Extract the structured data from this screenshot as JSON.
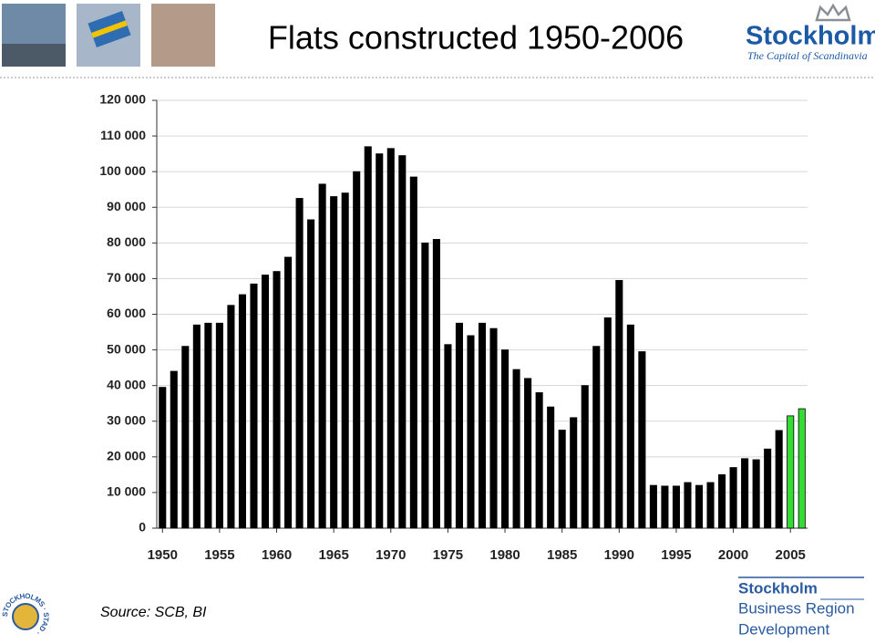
{
  "chart_data": {
    "type": "bar",
    "title": "Flats constructed 1950-2006",
    "categories": [
      "1950",
      null,
      null,
      null,
      null,
      "1955",
      null,
      null,
      null,
      null,
      "1960",
      null,
      null,
      null,
      null,
      "1965",
      null,
      null,
      null,
      null,
      "1970",
      null,
      null,
      null,
      null,
      "1975",
      null,
      null,
      null,
      null,
      "1980",
      null,
      null,
      null,
      null,
      "1985",
      null,
      null,
      null,
      null,
      "1990",
      null,
      null,
      null,
      null,
      "1995",
      null,
      null,
      null,
      null,
      "2000",
      null,
      null,
      null,
      null,
      "2005",
      null
    ],
    "values": [
      39500,
      44000,
      51000,
      57000,
      57500,
      57500,
      62500,
      65500,
      68500,
      71000,
      72000,
      76000,
      92500,
      86500,
      96500,
      93000,
      94000,
      100000,
      107000,
      105000,
      106500,
      104500,
      98500,
      80000,
      81000,
      51500,
      57500,
      54000,
      57500,
      56000,
      50000,
      44500,
      42000,
      38000,
      34000,
      27500,
      31000,
      40000,
      51000,
      59000,
      69500,
      57000,
      49500,
      12000,
      11800,
      11800,
      12800,
      12000,
      12800,
      15000,
      17000,
      19500,
      19200,
      22200,
      27400,
      31500,
      33500
    ],
    "colors": [
      "#000000",
      "#000000",
      "#000000",
      "#000000",
      "#000000",
      "#000000",
      "#000000",
      "#000000",
      "#000000",
      "#000000",
      "#000000",
      "#000000",
      "#000000",
      "#000000",
      "#000000",
      "#000000",
      "#000000",
      "#000000",
      "#000000",
      "#000000",
      "#000000",
      "#000000",
      "#000000",
      "#000000",
      "#000000",
      "#000000",
      "#000000",
      "#000000",
      "#000000",
      "#000000",
      "#000000",
      "#000000",
      "#000000",
      "#000000",
      "#000000",
      "#000000",
      "#000000",
      "#000000",
      "#000000",
      "#000000",
      "#000000",
      "#000000",
      "#000000",
      "#000000",
      "#000000",
      "#000000",
      "#000000",
      "#000000",
      "#000000",
      "#000000",
      "#000000",
      "#000000",
      "#000000",
      "#000000",
      "#000000",
      "#33dd33",
      "#33dd33"
    ],
    "ylim": [
      0,
      120000
    ],
    "yticks": [
      0,
      {
        "value": 10000,
        "label": "10 000"
      },
      {
        "value": 20000,
        "label": "20 000"
      },
      {
        "value": 30000,
        "label": "30 000"
      },
      {
        "value": 40000,
        "label": "40 000"
      },
      {
        "value": 50000,
        "label": "50 000"
      },
      {
        "value": 60000,
        "label": "60 000"
      },
      {
        "value": 70000,
        "label": "70 000"
      },
      {
        "value": 80000,
        "label": "80 000"
      },
      {
        "value": 90000,
        "label": "90 000"
      },
      {
        "value": 100000,
        "label": "100 000"
      },
      {
        "value": 110000,
        "label": "110 000"
      },
      {
        "value": 120000,
        "label": "120 000"
      }
    ],
    "grid": true,
    "source": "Source: SCB, BI"
  },
  "logos": {
    "top_name": "Stockholm",
    "top_tagline": "The Capital of Scandinavia",
    "bottom": [
      "Stockholm",
      "Business Region",
      "Development"
    ],
    "seal": "STOCKHOLMS · STAD ·"
  }
}
